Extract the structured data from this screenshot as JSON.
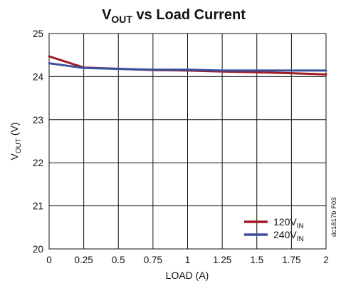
{
  "chart_data": {
    "type": "line",
    "title": {
      "main": "V",
      "sub": "OUT",
      "rest": " vs Load Current"
    },
    "xlabel": "LOAD (A)",
    "ylabel": {
      "main": "V",
      "sub": "OUT",
      "rest": " (V)"
    },
    "xlim": [
      0,
      2
    ],
    "ylim": [
      20,
      25
    ],
    "x_ticks": [
      "0",
      "0.25",
      "0.5",
      "0.75",
      "1",
      "1.25",
      "1.5",
      "1.75",
      "2"
    ],
    "y_ticks": [
      "20",
      "21",
      "22",
      "23",
      "24",
      "25"
    ],
    "grid": true,
    "legend_position": "bottom-right",
    "series": [
      {
        "name": {
          "main": "120V",
          "sub": "IN"
        },
        "color": "#a01c24",
        "x": [
          0,
          0.25,
          0.5,
          0.75,
          1,
          1.25,
          1.5,
          1.75,
          2
        ],
        "values": [
          24.47,
          24.21,
          24.18,
          24.15,
          24.14,
          24.12,
          24.1,
          24.08,
          24.05
        ]
      },
      {
        "name": {
          "main": "240V",
          "sub": "IN"
        },
        "color": "#3b4f9f",
        "x": [
          0,
          0.25,
          0.5,
          0.75,
          1,
          1.25,
          1.5,
          1.75,
          2
        ],
        "values": [
          24.31,
          24.2,
          24.18,
          24.16,
          24.16,
          24.14,
          24.14,
          24.14,
          24.14
        ]
      }
    ],
    "figure_id": "dc1817b F03"
  }
}
